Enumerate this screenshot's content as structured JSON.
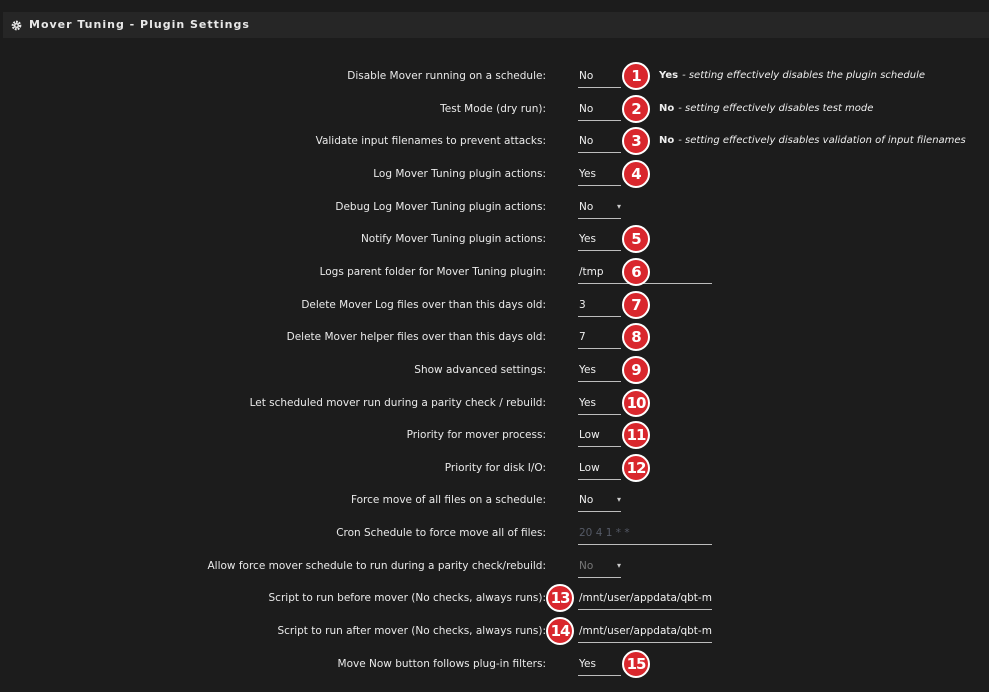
{
  "header": {
    "title": "Mover Tuning - Plugin Settings"
  },
  "rows": [
    {
      "label": "Disable Mover running on a schedule:",
      "value": "No",
      "badge": "1",
      "note_strong": "Yes",
      "note": "- setting effectively disables the plugin schedule"
    },
    {
      "label": "Test Mode (dry run):",
      "value": "No",
      "badge": "2",
      "note_strong": "No",
      "note": "- setting effectively disables test mode"
    },
    {
      "label": "Validate input filenames to prevent attacks:",
      "value": "No",
      "badge": "3",
      "note_strong": "No",
      "note": "- setting effectively disables validation of input filenames"
    },
    {
      "label": "Log Mover Tuning plugin actions:",
      "value": "Yes",
      "badge": "4"
    },
    {
      "label": "Debug Log Mover Tuning plugin actions:",
      "value": "No"
    },
    {
      "label": "Notify Mover Tuning plugin actions:",
      "value": "Yes",
      "badge": "5"
    },
    {
      "label": "Logs parent folder for Mover Tuning plugin:",
      "value": "/tmp",
      "badge": "6"
    },
    {
      "label": "Delete Mover Log files over than this days old:",
      "value": "3",
      "badge": "7"
    },
    {
      "label": "Delete Mover helper files over than this days old:",
      "value": "7",
      "badge": "8"
    },
    {
      "label": "Show advanced settings:",
      "value": "Yes",
      "badge": "9"
    },
    {
      "label": "Let scheduled mover run during a parity check / rebuild:",
      "value": "Yes",
      "badge": "10"
    },
    {
      "label": "Priority for mover process:",
      "value": "Low",
      "badge": "11"
    },
    {
      "label": "Priority for disk I/O:",
      "value": "Low",
      "badge": "12"
    },
    {
      "label": "Force move of all files on a schedule:",
      "value": "No"
    },
    {
      "label": "Cron Schedule to force move all of files:",
      "value": "20 4 1 * *"
    },
    {
      "label": "Allow force mover schedule to run during a parity check/rebuild:",
      "value": "No"
    },
    {
      "label": "Script to run before mover (No checks, always runs):",
      "value": "/mnt/user/appdata/qbt-mov",
      "badge": "13"
    },
    {
      "label": "Script to run after mover (No checks, always runs):",
      "value": "/mnt/user/appdata/qbt-mov",
      "badge": "14"
    },
    {
      "label": "Move Now button follows plug-in filters:",
      "value": "Yes",
      "badge": "15"
    }
  ]
}
